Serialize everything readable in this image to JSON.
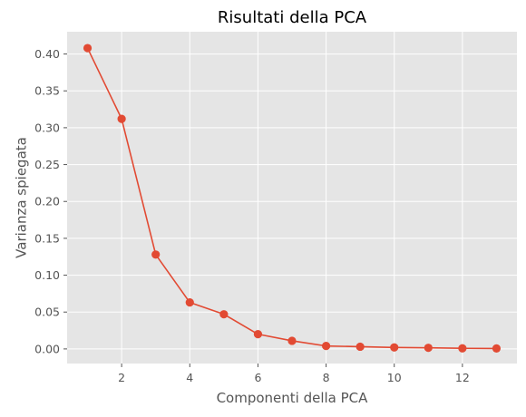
{
  "chart_data": {
    "type": "line",
    "title": "Risultati della PCA",
    "xlabel": "Componenti della PCA",
    "ylabel": "Varianza spiegata",
    "x": [
      1,
      2,
      3,
      4,
      5,
      6,
      7,
      8,
      9,
      10,
      11,
      12,
      13
    ],
    "series": [
      {
        "values": [
          0.408,
          0.312,
          0.128,
          0.063,
          0.047,
          0.02,
          0.011,
          0.004,
          0.003,
          0.002,
          0.0015,
          0.0008,
          0.0006
        ]
      }
    ],
    "xticks": [
      2,
      4,
      6,
      8,
      10,
      12
    ],
    "yticks": [
      0.0,
      0.05,
      0.1,
      0.15,
      0.2,
      0.25,
      0.3,
      0.35,
      0.4
    ],
    "xlim": [
      0.4,
      13.6
    ],
    "ylim": [
      -0.0198,
      0.4302
    ],
    "grid": true,
    "marker": "circle",
    "colors": {
      "line": "#e24a33",
      "plot_background": "#e5e5e5",
      "grid": "#ffffff"
    }
  }
}
